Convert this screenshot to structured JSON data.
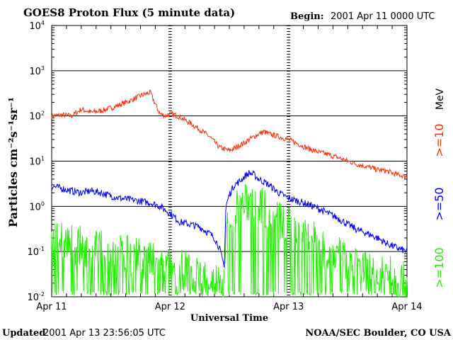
{
  "header": {
    "title": "GOES8 Proton Flux (5 minute data)",
    "begin_label": "Begin:",
    "begin_value": "2001 Apr 11 0000 UTC"
  },
  "footer": {
    "updated_label": "Updated",
    "updated_value": "2001 Apr 13 23:56:05 UTC",
    "credit": "NOAA/SEC Boulder, CO USA"
  },
  "colors": {
    "red": "#ff2a00",
    "blue": "#0000ff",
    "green": "#22ee00",
    "grid": "#000000"
  },
  "chart_data": {
    "type": "line",
    "title": "GOES8 Proton Flux (5 minute data)",
    "xlabel": "Universal Time",
    "ylabel": "Particles cm⁻²s⁻¹sr⁻¹",
    "yscale": "log",
    "ylim": [
      0.01,
      10000
    ],
    "xlim": [
      0,
      72
    ],
    "x_unit": "hours since 2001 Apr 11 0000 UTC",
    "grid": true,
    "legend_position": "right",
    "x_ticks": [
      {
        "x": 0,
        "label": "Apr 11"
      },
      {
        "x": 24,
        "label": "Apr 12"
      },
      {
        "x": 48,
        "label": "Apr 13"
      },
      {
        "x": 72,
        "label": "Apr 14"
      }
    ],
    "y_ticks": [
      {
        "value": 10000,
        "base": "10",
        "exp": "4"
      },
      {
        "value": 1000,
        "base": "10",
        "exp": "3"
      },
      {
        "value": 100,
        "base": "10",
        "exp": "2"
      },
      {
        "value": 10,
        "base": "10",
        "exp": "1"
      },
      {
        "value": 1,
        "base": "10",
        "exp": "0"
      },
      {
        "value": 0.1,
        "base": "10",
        "exp": "-1"
      },
      {
        "value": 0.01,
        "base": "10",
        "exp": "-2"
      }
    ],
    "legend": {
      "unit": "MeV",
      "entries": [
        {
          "label": ">=10",
          "color": "#ff2a00"
        },
        {
          "label": ">=50",
          "color": "#0000ff"
        },
        {
          "label": ">=100",
          "color": "#22ee00"
        }
      ]
    },
    "series": [
      {
        "name": ">=10",
        "color": "#ff2a00",
        "noise": 0.06,
        "x": [
          0,
          2,
          4,
          6,
          8,
          10,
          12,
          14,
          16,
          18,
          20,
          21,
          22,
          23,
          24,
          25,
          26,
          28,
          30,
          32,
          34,
          36,
          38,
          39,
          40,
          42,
          43,
          44,
          46,
          48,
          50,
          52,
          54,
          56,
          58,
          60,
          62,
          64,
          66,
          68,
          70,
          72
        ],
        "y": [
          100,
          105,
          100,
          140,
          120,
          130,
          150,
          180,
          220,
          280,
          330,
          180,
          110,
          100,
          110,
          105,
          95,
          70,
          50,
          35,
          20,
          17,
          22,
          25,
          30,
          40,
          45,
          40,
          35,
          30,
          24,
          19,
          16,
          14,
          12,
          10,
          8.5,
          7.5,
          6.5,
          6,
          5,
          4.5
        ]
      },
      {
        "name": ">=50",
        "color": "#0000ff",
        "noise": 0.08,
        "x": [
          0,
          2,
          4,
          6,
          8,
          10,
          12,
          14,
          16,
          18,
          20,
          22,
          24,
          26,
          28,
          30,
          32,
          33,
          34,
          34.5,
          35,
          35.3,
          36,
          37,
          38,
          39,
          40,
          41,
          42,
          44,
          46,
          48,
          50,
          52,
          54,
          56,
          58,
          60,
          62,
          64,
          66,
          68,
          70,
          72
        ],
        "y": [
          2.8,
          2.5,
          2.2,
          2.0,
          2.2,
          2.0,
          1.7,
          1.5,
          1.4,
          1.3,
          1.2,
          1.0,
          0.7,
          0.45,
          0.4,
          0.35,
          0.25,
          0.2,
          0.12,
          0.07,
          0.05,
          1.0,
          1.8,
          3.0,
          3.5,
          4.5,
          5.5,
          5.0,
          4.0,
          3.0,
          2.0,
          1.5,
          1.3,
          1.1,
          0.9,
          0.7,
          0.55,
          0.4,
          0.3,
          0.25,
          0.2,
          0.15,
          0.12,
          0.1
        ]
      },
      {
        "name": ">=100",
        "color": "#22ee00",
        "noise": 0.45,
        "floor": 0.012,
        "x": [
          0,
          2,
          4,
          6,
          8,
          10,
          12,
          14,
          16,
          18,
          20,
          22,
          24,
          26,
          28,
          30,
          32,
          34,
          35,
          35.3,
          36,
          37,
          38,
          40,
          42,
          44,
          46,
          48,
          50,
          52,
          54,
          56,
          58,
          60,
          62,
          64,
          66,
          68,
          70,
          72
        ],
        "y": [
          0.22,
          0.18,
          0.15,
          0.13,
          0.12,
          0.11,
          0.1,
          0.09,
          0.08,
          0.07,
          0.06,
          0.05,
          0.045,
          0.04,
          0.035,
          0.03,
          0.025,
          0.02,
          0.015,
          0.2,
          0.5,
          0.8,
          1.0,
          1.2,
          1.1,
          0.8,
          0.5,
          0.35,
          0.28,
          0.22,
          0.15,
          0.1,
          0.08,
          0.06,
          0.05,
          0.04,
          0.035,
          0.03,
          0.025,
          0.02
        ]
      }
    ]
  }
}
